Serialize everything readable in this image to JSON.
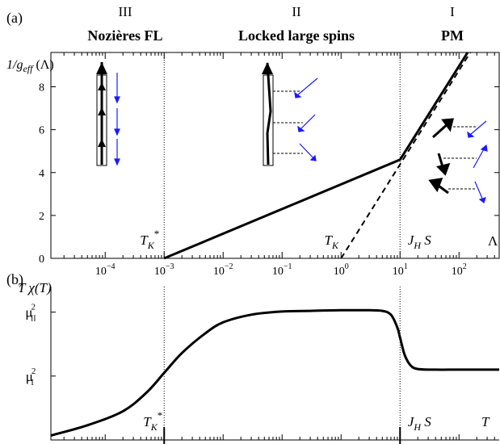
{
  "chart_data": [
    {
      "type": "line",
      "panel_label": "(a)",
      "x_scale": "log",
      "x_ticks": [
        {
          "value": 0.0001,
          "base": "10",
          "exp": "−4"
        },
        {
          "value": 0.001,
          "base": "10",
          "exp": "−3"
        },
        {
          "value": 0.01,
          "base": "10",
          "exp": "−2"
        },
        {
          "value": 0.1,
          "base": "10",
          "exp": "−1"
        },
        {
          "value": 1,
          "base": "10",
          "exp": "0"
        },
        {
          "value": 10,
          "base": "10",
          "exp": "1"
        },
        {
          "value": 100,
          "base": "10",
          "exp": "2"
        }
      ],
      "xlim": [
        1.2e-05,
        480
      ],
      "ylim": [
        0,
        9.6
      ],
      "y_ticks": [
        "0",
        "2",
        "4",
        "6",
        "8"
      ],
      "ylabel": {
        "prefix": "1/g",
        "sub": "eff",
        "suffix": " (Λ)"
      },
      "xlabel": "Λ",
      "regions": [
        {
          "numeral": "III",
          "title": "Nozières FL"
        },
        {
          "numeral": "II",
          "title": "Locked large spins"
        },
        {
          "numeral": "I",
          "title": "PM"
        }
      ],
      "markers": [
        {
          "name": "T_K^*",
          "main": "T",
          "sub": "K",
          "sup": "*",
          "x": 0.001
        },
        {
          "name": "T_K",
          "main": "T",
          "sub": "K",
          "sup": "",
          "x": 1
        },
        {
          "name": "J_H S",
          "main": "J",
          "sub": "H",
          "sup": "",
          "tail": " S",
          "x": 10
        }
      ],
      "series": [
        {
          "style": "solid",
          "x": [
            0.001,
            10,
            140
          ],
          "y": [
            0,
            4.6,
            9.6
          ]
        },
        {
          "style": "dashed",
          "x": [
            1,
            155
          ],
          "y": [
            0,
            9.6
          ]
        }
      ]
    },
    {
      "type": "line",
      "panel_label": "(b)",
      "x_scale": "log",
      "ylabel": {
        "prefix": "T χ(T)"
      },
      "xlabel": "T",
      "y_ticks": [
        {
          "name": "mu_I^2",
          "main": "μ",
          "sup": "2",
          "sub": "I",
          "value": 1.0
        },
        {
          "name": "mu_II^2",
          "main": "μ",
          "sup": "2",
          "sub": "II",
          "value": 2.0
        }
      ],
      "ylim": [
        0,
        2.4
      ],
      "markers": [
        {
          "name": "T_K^*",
          "main": "T",
          "sub": "K",
          "sup": "*",
          "x": 0.001
        },
        {
          "name": "J_H S",
          "main": "J",
          "sub": "H",
          "sup": "",
          "tail": " S",
          "x": 10
        }
      ],
      "series": [
        {
          "style": "solid",
          "x": [
            1.2e-05,
            5e-05,
            0.0002,
            0.0005,
            0.001,
            0.002,
            0.005,
            0.01,
            0.03,
            0.1,
            0.3,
            1,
            3,
            5,
            7,
            9,
            10,
            12,
            15,
            20,
            40,
            100,
            480
          ],
          "y": [
            0.07,
            0.23,
            0.45,
            0.74,
            1.05,
            1.36,
            1.67,
            1.84,
            1.96,
            2.01,
            2.02,
            2.03,
            2.03,
            2.02,
            1.96,
            1.76,
            1.6,
            1.33,
            1.17,
            1.11,
            1.1,
            1.1,
            1.1
          ]
        }
      ]
    }
  ]
}
